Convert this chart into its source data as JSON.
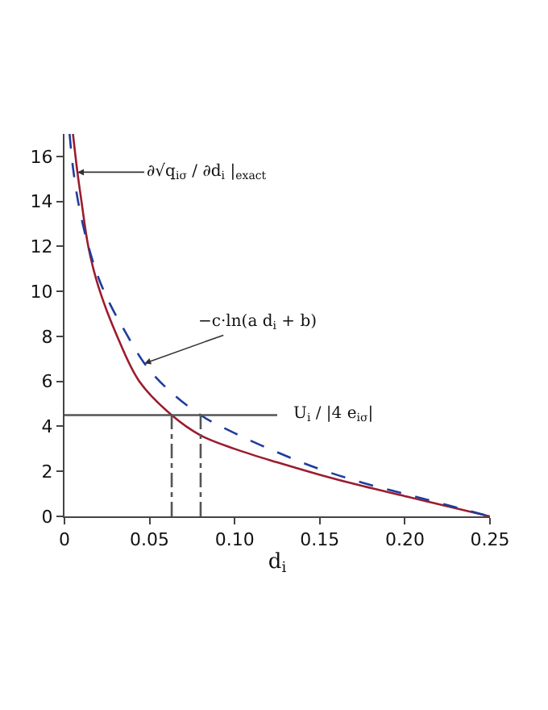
{
  "chart_data": {
    "type": "line",
    "xlabel": "d$_{i}$",
    "xlim": [
      0,
      0.25
    ],
    "xticks": [
      {
        "value": 0,
        "label": "0"
      },
      0.05,
      {
        "value": 0.1,
        "label": "0.10"
      },
      0.15,
      {
        "value": 0.2,
        "label": "0.20"
      },
      0.25
    ],
    "ylim": [
      0,
      17
    ],
    "yticks": [
      0,
      2,
      4,
      6,
      8,
      10,
      12,
      14,
      16
    ],
    "series": [
      {
        "color": "#9b1c2e",
        "line_style": "solid",
        "x": [
          0.005,
          0.0076,
          0.01,
          0.014,
          0.02,
          0.031,
          0.044,
          0.063,
          0.08,
          0.1,
          0.125,
          0.15,
          0.175,
          0.2,
          0.225,
          0.25
        ],
        "values": [
          17,
          15.3,
          14,
          12,
          10.2,
          8,
          6,
          4.5,
          3.6,
          3.0,
          2.4,
          1.85,
          1.35,
          0.9,
          0.45,
          0
        ]
      },
      {
        "color": "#1f3c9e",
        "line_style": "dashed",
        "x": [
          0.003,
          0.005,
          0.008,
          0.013,
          0.02,
          0.027,
          0.035,
          0.047,
          0.06,
          0.08,
          0.1,
          0.125,
          0.15,
          0.175,
          0.2,
          0.225,
          0.25
        ],
        "values": [
          17,
          15.5,
          14,
          12.3,
          10.6,
          9.4,
          8.3,
          6.8,
          5.7,
          4.5,
          3.7,
          2.85,
          2.1,
          1.5,
          1.0,
          0.5,
          0
        ]
      },
      {
        "color": "#555555",
        "line_style": "solid",
        "x": [
          0,
          0.125
        ],
        "values": [
          4.5,
          4.5
        ]
      },
      {
        "color": "#555555",
        "line_style": "dashdot",
        "x": [
          0.063,
          0.063
        ],
        "values": [
          0,
          4.5
        ]
      },
      {
        "color": "#555555",
        "line_style": "dashdot",
        "x": [
          0.08,
          0.08
        ],
        "values": [
          0,
          4.5
        ]
      }
    ],
    "annotations": [
      {
        "text": "∂√q$_{iσ}$ / ∂d$_{i}$ |$_{exact}$",
        "x": 0.0076,
        "y": 15.3
      },
      {
        "text": "−c·ln(a d$_{i}$ + b)",
        "x": 0.047,
        "y": 6.8
      },
      {
        "text": "U$_{i}$ / |4 e$_{iσ}$|",
        "x": 0.125,
        "y": 4.5
      }
    ]
  }
}
